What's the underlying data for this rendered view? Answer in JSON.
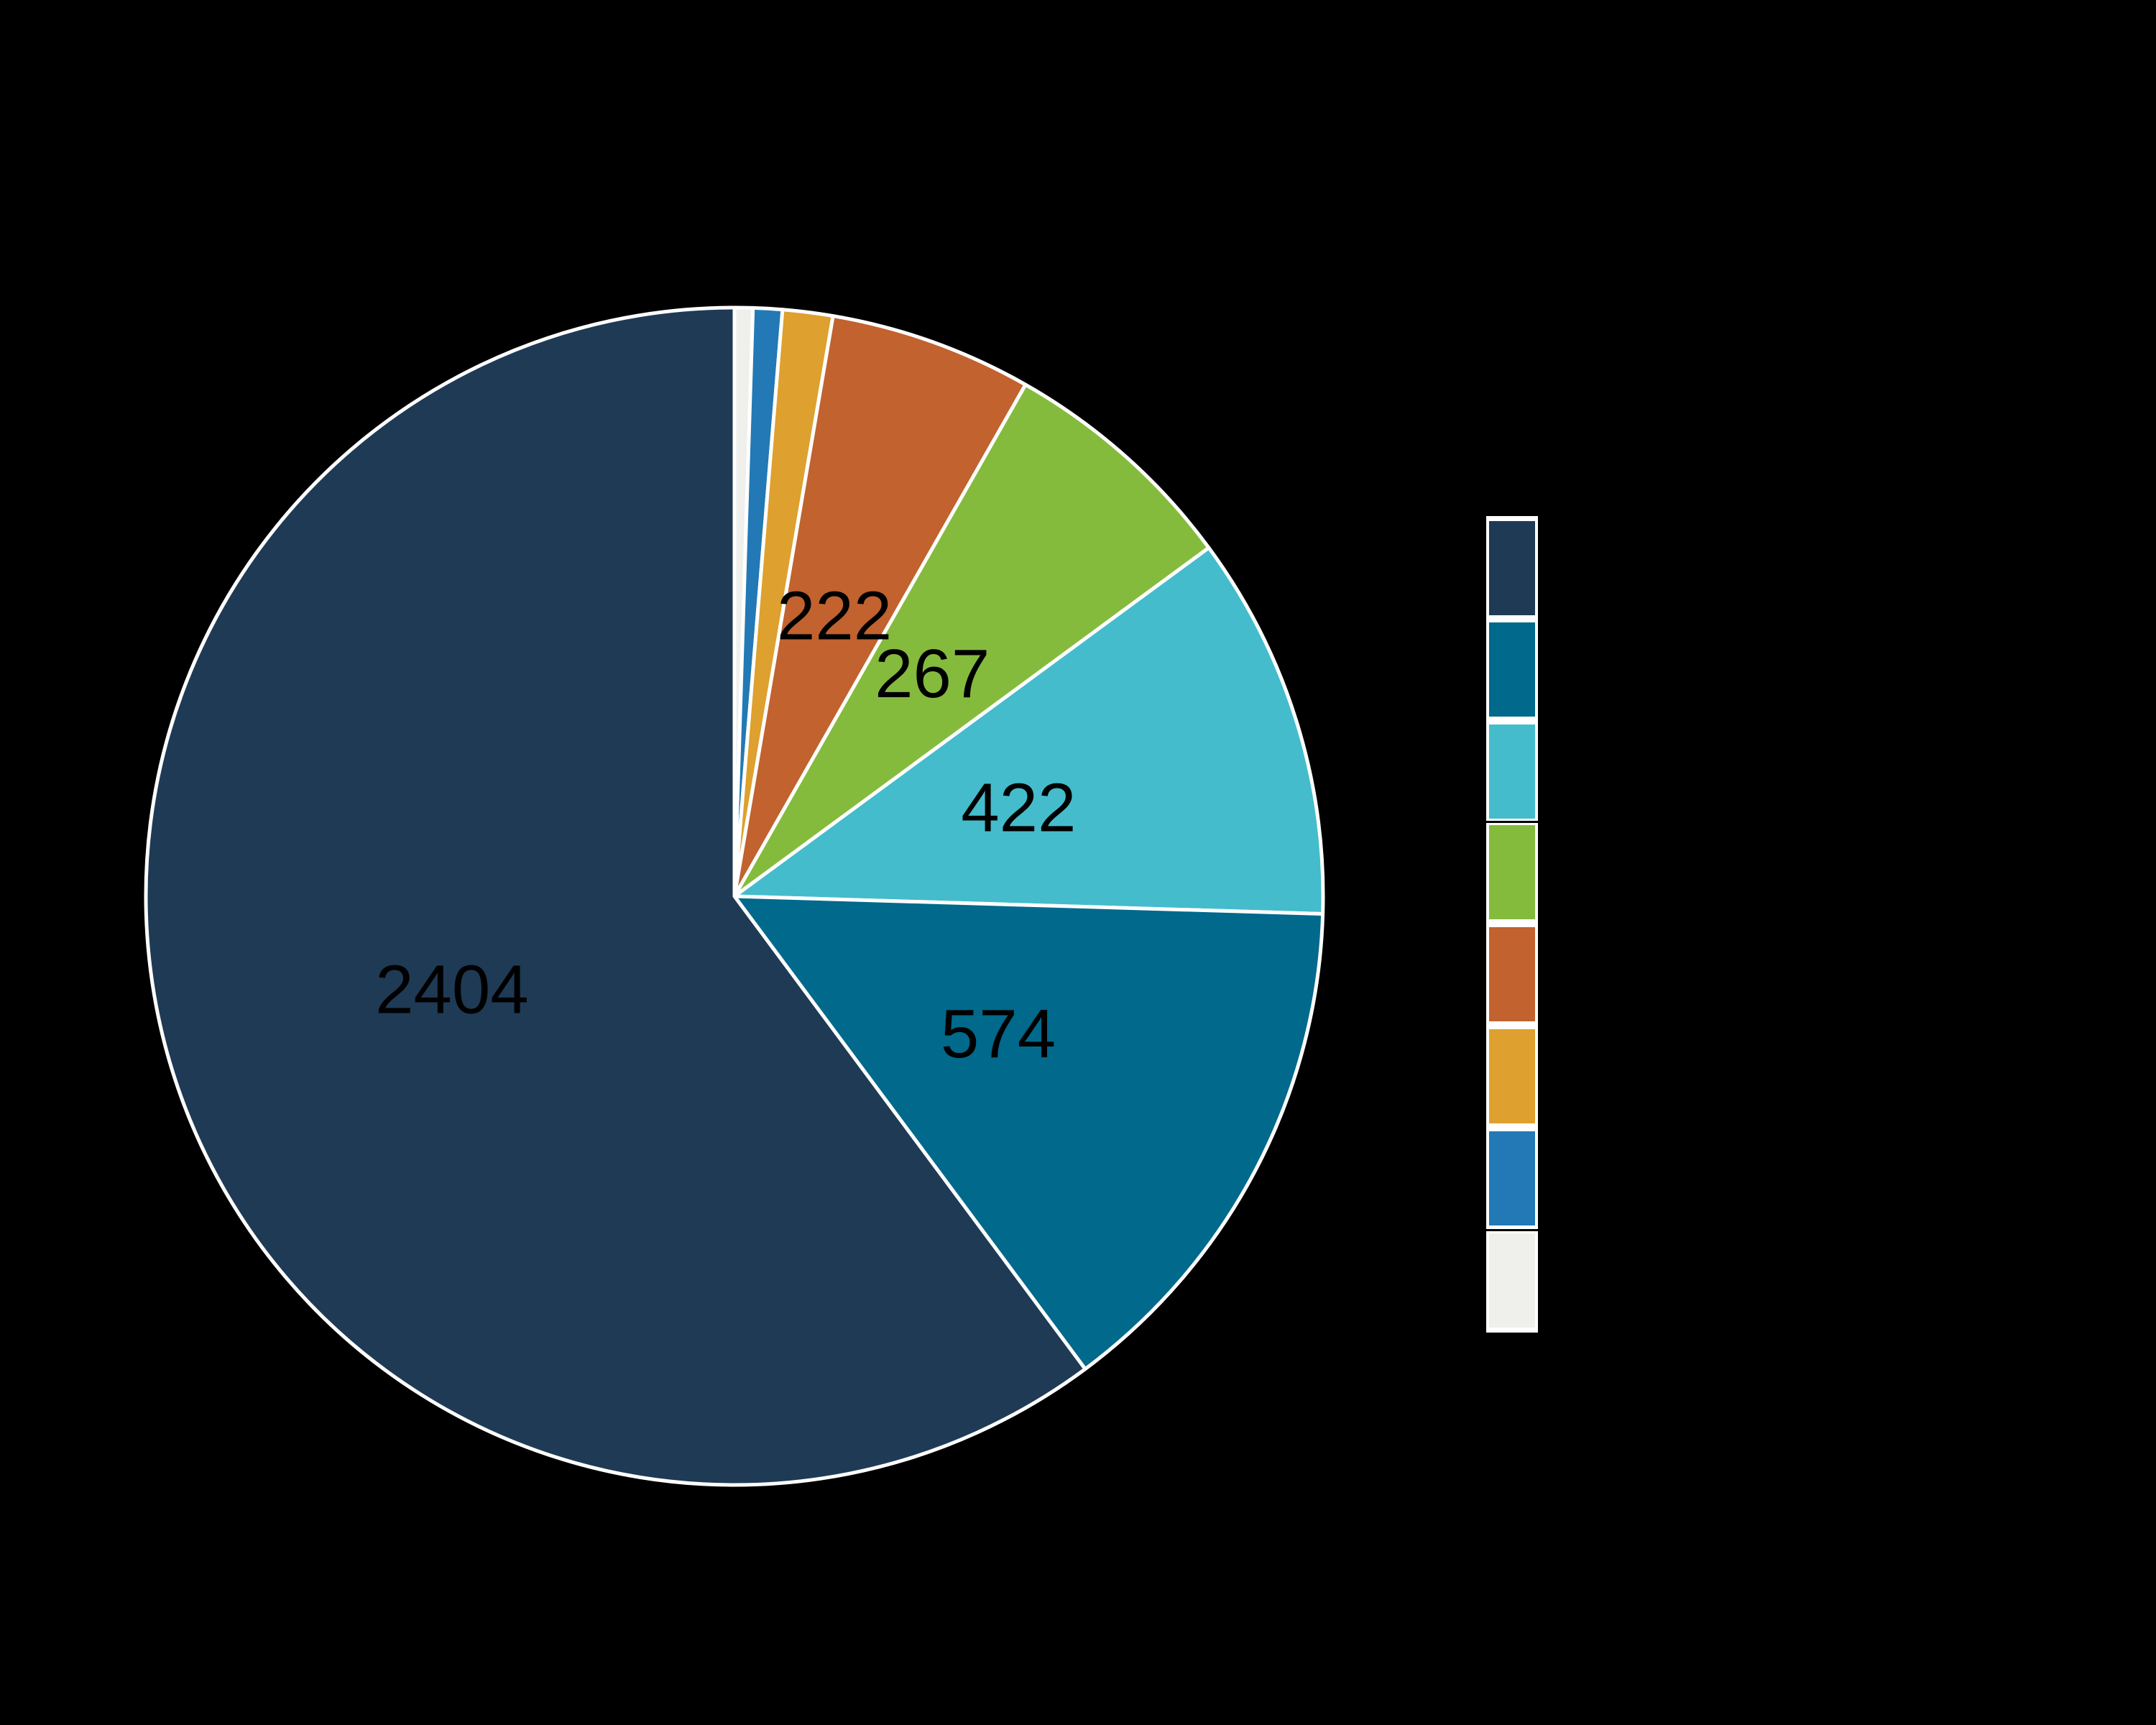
{
  "page": {
    "background_color": "#000000",
    "title": ""
  },
  "chart_data": {
    "type": "pie",
    "title": "",
    "total": 3996,
    "start_angle": "12 o'clock",
    "draw_direction": "counterclockwise (slices listed in legend order, top to bottom)",
    "slice_outline_color": "#FFFFFF",
    "data_label_color": "#000000",
    "slices": [
      {
        "id": "navy",
        "color": "#1F3A55",
        "value": 2404,
        "data_label": "2404",
        "label_visible": true,
        "value_estimated": false
      },
      {
        "id": "teal",
        "color": "#00698C",
        "value": 574,
        "data_label": "574",
        "label_visible": true,
        "value_estimated": false
      },
      {
        "id": "cyan",
        "color": "#44BCCC",
        "value": 422,
        "data_label": "422",
        "label_visible": true,
        "value_estimated": false
      },
      {
        "id": "green",
        "color": "#85BB3D",
        "value": 267,
        "data_label": "267",
        "label_visible": true,
        "value_estimated": false
      },
      {
        "id": "orange",
        "color": "#C1622F",
        "value": 222,
        "data_label": "222",
        "label_visible": true,
        "value_estimated": false
      },
      {
        "id": "gold",
        "color": "#DEA02E",
        "value": 55,
        "data_label": "",
        "label_visible": false,
        "value_estimated": true
      },
      {
        "id": "blue",
        "color": "#2279B5",
        "value": 32,
        "data_label": "",
        "label_visible": false,
        "value_estimated": true
      },
      {
        "id": "white",
        "color": "#EFEFEC",
        "value": 20,
        "data_label": "",
        "label_visible": false,
        "value_estimated": true
      }
    ],
    "legend": {
      "position": "right",
      "background_color": "#FFFFFF",
      "text_labels_visible": false,
      "groups": [
        {
          "swatch_ids": [
            "navy",
            "teal",
            "cyan"
          ]
        },
        {
          "swatch_ids": [
            "green",
            "orange",
            "gold",
            "blue"
          ]
        },
        {
          "swatch_ids": [
            "white"
          ]
        }
      ]
    }
  }
}
